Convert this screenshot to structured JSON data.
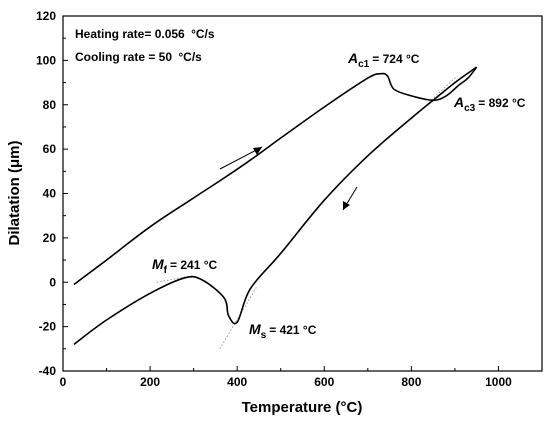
{
  "chart_data": {
    "type": "line",
    "xlabel": "Temperature (°C)",
    "ylabel": "Dilatation (μm)",
    "xlim": [
      0,
      1100
    ],
    "ylim": [
      -40,
      120
    ],
    "xticks": [
      "0",
      "200",
      "400",
      "600",
      "800",
      "1000"
    ],
    "yticks": [
      "-40",
      "-20",
      "0",
      "20",
      "40",
      "60",
      "80",
      "100",
      "120"
    ],
    "grid": false,
    "legend": "none",
    "series": [
      {
        "x": [
          25,
          100,
          200,
          300,
          370,
          430,
          500,
          600,
          700,
          730,
          745,
          760,
          800,
          850,
          880,
          910,
          930,
          950
        ],
        "y": [
          -1,
          10,
          25,
          38,
          47,
          55,
          65,
          79,
          92,
          94,
          93,
          87,
          84,
          82,
          84,
          89,
          92,
          97
        ]
      },
      {
        "x": [
          950,
          900,
          850,
          800,
          700,
          600,
          500,
          430,
          400,
          380,
          370,
          320,
          280,
          200,
          100,
          25
        ],
        "y": [
          97,
          90,
          82,
          74,
          57,
          37,
          13,
          -3,
          -18,
          -15,
          -7,
          1,
          2,
          -5,
          -17,
          -28
        ]
      }
    ],
    "annotations": {
      "heating_rate_label": "Heating rate= 0.056",
      "heating_rate_unit": "°C/s",
      "cooling_rate_label": "Cooling rate = 50",
      "cooling_rate_unit": "°C/s",
      "ac1": {
        "symbol": "A",
        "subscript": "c1",
        "value": "= 724 °C",
        "x": 724,
        "y": 94
      },
      "ac3": {
        "symbol": "A",
        "subscript": "c3",
        "value": "= 892 °C",
        "x": 892,
        "y": 85
      },
      "mf": {
        "symbol": "M",
        "subscript": "f",
        "value": "= 241 °C",
        "x": 241,
        "y": 1
      },
      "ms": {
        "symbol": "M",
        "subscript": "s",
        "value": "= 421 °C",
        "x": 421,
        "y": -18
      }
    },
    "colors": {
      "line": "#000000",
      "tangent": "#9a9a9a"
    }
  }
}
